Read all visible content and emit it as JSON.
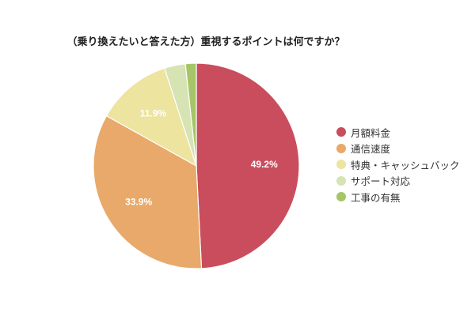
{
  "chart_data": {
    "type": "pie",
    "title": "（乗り換えたいと答えた方）重視するポイントは何ですか？",
    "categories": [
      "月額料金",
      "通信速度",
      "特典・キャッシュバック",
      "サポート対応",
      "工事の有無"
    ],
    "values": [
      49.2,
      33.9,
      11.9,
      3.3,
      1.7
    ],
    "unit": "%",
    "data_labels": [
      "49.2%",
      "33.9%",
      "11.9%",
      "",
      ""
    ],
    "colors": [
      "#c94d5d",
      "#e8a96a",
      "#ece49f",
      "#d6e3b2",
      "#a6c567"
    ],
    "start_angle": "12 o'clock",
    "direction": "clockwise",
    "legend_position": "right"
  },
  "legend": {
    "items": [
      {
        "label": "月額料金",
        "color": "#c94d5d"
      },
      {
        "label": "通信速度",
        "color": "#e8a96a"
      },
      {
        "label": "特典・キャッシュバック",
        "color": "#ece49f"
      },
      {
        "label": "サポート対応",
        "color": "#d6e3b2"
      },
      {
        "label": "工事の有無",
        "color": "#a6c567"
      }
    ]
  }
}
